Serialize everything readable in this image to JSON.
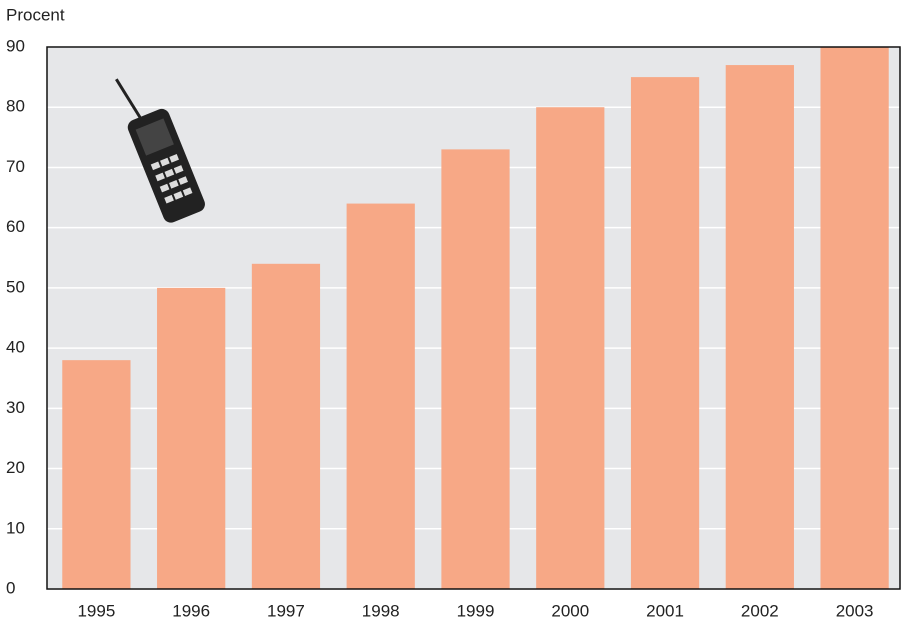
{
  "chart_data": {
    "type": "bar",
    "y_axis_label": "Procent",
    "categories": [
      "1995",
      "1996",
      "1997",
      "1998",
      "1999",
      "2000",
      "2001",
      "2002",
      "2003"
    ],
    "values": [
      38,
      50,
      54,
      64,
      73,
      80,
      85,
      87,
      90
    ],
    "color": "#f7a886",
    "ylim": [
      0,
      90
    ],
    "yticks": [
      0,
      10,
      20,
      30,
      40,
      50,
      60,
      70,
      80,
      90
    ],
    "grid": true
  }
}
